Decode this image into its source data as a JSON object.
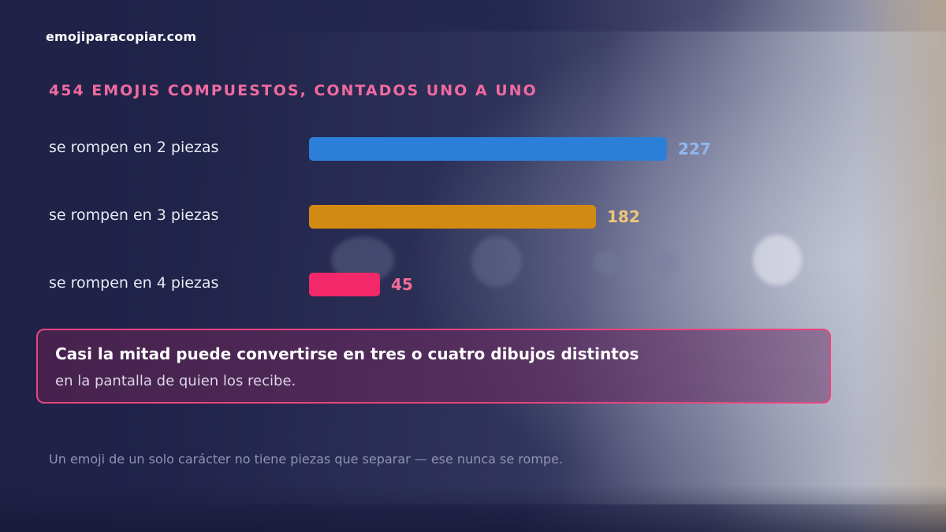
{
  "brand": "emojiparacopiar.com",
  "chart_data": {
    "type": "bar",
    "orientation": "horizontal",
    "title": "454 EMOJIS COMPUESTOS, CONTADOS UNO A UNO",
    "categories": [
      "se rompen en 2 piezas",
      "se rompen en 3 piezas",
      "se rompen en 4 piezas"
    ],
    "values": [
      227,
      182,
      45
    ],
    "value_labels": [
      "227",
      "182",
      "45"
    ],
    "colors": [
      "#2b7fd8",
      "#d28b12",
      "#f2286a"
    ],
    "value_label_colors": [
      "#8fb8ef",
      "#f1c679",
      "#f46c99"
    ],
    "grid": false
  },
  "callout": {
    "title": "Casi la mitad puede convertirse en tres o cuatro dibujos distintos",
    "subtitle": "en la pantalla de quien los recibe."
  },
  "footnote": "Un emoji de un solo carácter no tiene piezas que separar — ese nunca se rompe."
}
